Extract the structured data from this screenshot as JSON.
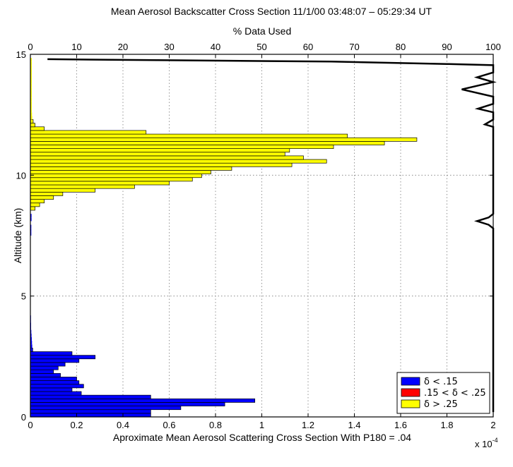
{
  "chart_data": {
    "type": "bar",
    "orientation": "horizontal",
    "title": "Mean Aerosol Backscatter Cross Section 11/1/00 03:48:07 – 05:29:34 UT",
    "top_axis_label": "% Data Used",
    "xlabel": "Aproximate Mean Aerosol Scattering Cross Section With P180 = .04",
    "x_multiplier": "x 10",
    "x_multiplier_exponent": "-4",
    "ylabel": "Altitude (km)",
    "xlim": [
      0,
      2
    ],
    "ylim": [
      0,
      15
    ],
    "top_xlim": [
      0,
      100
    ],
    "x_ticks": [
      "0",
      "0.2",
      "0.4",
      "0.6",
      "0.8",
      "1",
      "1.2",
      "1.4",
      "1.6",
      "1.8",
      "2"
    ],
    "top_ticks": [
      "0",
      "10",
      "20",
      "30",
      "40",
      "50",
      "60",
      "70",
      "80",
      "90",
      "100"
    ],
    "y_ticks": [
      "0",
      "5",
      "10",
      "15"
    ],
    "grid": true,
    "legend_position": "bottom-right",
    "legend": [
      {
        "label": "δ < .15",
        "color": "#0000ff"
      },
      {
        "label": ".15 < δ < .25",
        "color": "#ff0000"
      },
      {
        "label": "δ > .25",
        "color": "#ffff00"
      }
    ],
    "bin_height_km": 0.15,
    "series": [
      {
        "color": "#0000ff",
        "bins": [
          [
            0.0,
            0.52
          ],
          [
            0.15,
            0.52
          ],
          [
            0.3,
            0.65
          ],
          [
            0.45,
            0.84
          ],
          [
            0.6,
            0.97
          ],
          [
            0.75,
            0.52
          ],
          [
            0.9,
            0.22
          ],
          [
            1.05,
            0.18
          ],
          [
            1.2,
            0.23
          ],
          [
            1.35,
            0.21
          ],
          [
            1.5,
            0.2
          ],
          [
            1.65,
            0.13
          ],
          [
            1.8,
            0.1
          ],
          [
            1.95,
            0.12
          ],
          [
            2.1,
            0.15
          ],
          [
            2.25,
            0.21
          ],
          [
            2.4,
            0.28
          ],
          [
            2.55,
            0.18
          ],
          [
            2.7,
            0.01
          ],
          [
            2.85,
            0.008
          ],
          [
            3.0,
            0.007
          ],
          [
            3.15,
            0.006
          ],
          [
            3.3,
            0.005
          ],
          [
            3.45,
            0.004
          ],
          [
            3.6,
            0.003
          ],
          [
            3.75,
            0.003
          ],
          [
            3.9,
            0.002
          ],
          [
            4.05,
            0.002
          ],
          [
            7.5,
            0.004
          ],
          [
            7.65,
            0.004
          ],
          [
            7.8,
            0.004
          ],
          [
            8.1,
            0.005
          ],
          [
            8.25,
            0.005
          ],
          [
            11.85,
            0.004
          ],
          [
            12.0,
            0.005
          ],
          [
            12.15,
            0.004
          ],
          [
            13.5,
            0.003
          ],
          [
            13.65,
            0.003
          ],
          [
            14.1,
            0.004
          ],
          [
            14.25,
            0.003
          ]
        ]
      },
      {
        "color": "#ff0000",
        "bins": [
          [
            11.1,
            0.015
          ],
          [
            11.25,
            0.025
          ],
          [
            11.4,
            0.012
          ]
        ]
      },
      {
        "color": "#ffff00",
        "bins": [
          [
            8.55,
            0.02
          ],
          [
            8.7,
            0.04
          ],
          [
            8.85,
            0.06
          ],
          [
            9.0,
            0.1
          ],
          [
            9.15,
            0.14
          ],
          [
            9.3,
            0.28
          ],
          [
            9.45,
            0.45
          ],
          [
            9.6,
            0.6
          ],
          [
            9.75,
            0.7
          ],
          [
            9.9,
            0.74
          ],
          [
            10.05,
            0.78
          ],
          [
            10.2,
            0.87
          ],
          [
            10.35,
            1.13
          ],
          [
            10.5,
            1.28
          ],
          [
            10.65,
            1.18
          ],
          [
            10.8,
            1.1
          ],
          [
            10.95,
            1.12
          ],
          [
            11.1,
            1.31
          ],
          [
            11.25,
            1.53
          ],
          [
            11.4,
            1.67
          ],
          [
            11.55,
            1.37
          ],
          [
            11.7,
            0.5
          ],
          [
            11.85,
            0.06
          ],
          [
            12.0,
            0.02
          ],
          [
            12.15,
            0.012
          ],
          [
            12.3,
            0.008
          ],
          [
            12.45,
            0.007
          ],
          [
            12.6,
            0.006
          ],
          [
            12.75,
            0.006
          ],
          [
            12.9,
            0.006
          ],
          [
            13.05,
            0.006
          ],
          [
            13.2,
            0.006
          ],
          [
            13.35,
            0.006
          ],
          [
            13.5,
            0.006
          ],
          [
            13.65,
            0.006
          ],
          [
            13.8,
            0.006
          ],
          [
            13.95,
            0.006
          ],
          [
            14.1,
            0.006
          ],
          [
            14.25,
            0.006
          ],
          [
            14.4,
            0.006
          ],
          [
            14.55,
            0.006
          ],
          [
            14.7,
            0.006
          ]
        ]
      }
    ],
    "percent_line": {
      "color": "#000000",
      "points": [
        [
          100,
          0.2
        ],
        [
          100,
          7.8
        ],
        [
          99,
          7.95
        ],
        [
          96.5,
          8.1
        ],
        [
          99,
          8.25
        ],
        [
          100,
          8.4
        ],
        [
          100,
          12.0
        ],
        [
          98.2,
          12.1
        ],
        [
          100,
          12.3
        ],
        [
          100,
          12.6
        ],
        [
          96.7,
          12.75
        ],
        [
          100,
          12.95
        ],
        [
          100,
          13.25
        ],
        [
          93.2,
          13.55
        ],
        [
          100,
          13.85
        ],
        [
          96.5,
          14.05
        ],
        [
          100,
          14.25
        ],
        [
          100,
          14.55
        ],
        [
          90,
          14.6
        ],
        [
          65,
          14.7
        ],
        [
          20,
          14.77
        ],
        [
          3.7,
          14.8
        ]
      ]
    }
  }
}
